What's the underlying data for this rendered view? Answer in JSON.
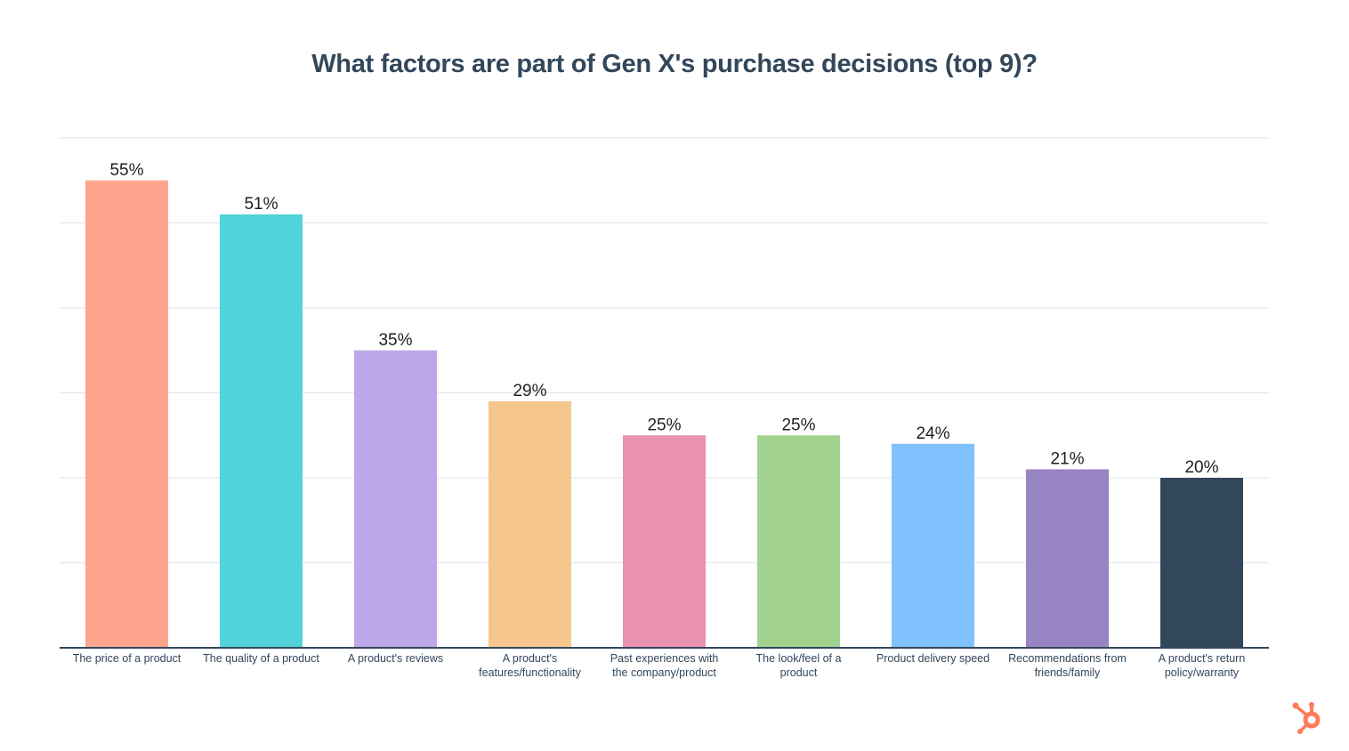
{
  "chart_data": {
    "type": "bar",
    "title": "What factors are part of Gen X's purchase decisions (top 9)?",
    "categories": [
      [
        "The price of a product"
      ],
      [
        "The quality of a product"
      ],
      [
        "A product's reviews"
      ],
      [
        "A product's",
        "features/functionality"
      ],
      [
        "Past experiences with",
        "the company/product"
      ],
      [
        "The look/feel of a",
        "product"
      ],
      [
        "Product delivery speed"
      ],
      [
        "Recommendations from",
        "friends/family"
      ],
      [
        "A product's return",
        "policy/warranty"
      ]
    ],
    "values": [
      55,
      51,
      35,
      29,
      25,
      25,
      24,
      21,
      20
    ],
    "value_labels": [
      "55%",
      "51%",
      "35%",
      "29%",
      "25%",
      "25%",
      "24%",
      "21%",
      "20%"
    ],
    "colors": [
      "#fea58e",
      "#51d3d9",
      "#bea7e8",
      "#f5c78e",
      "#ea90b1",
      "#a2d28f",
      "#81c1fd",
      "#9784c2",
      "#33475b"
    ],
    "ylim": [
      0,
      60
    ],
    "grid": true,
    "legend": "none",
    "xlabel": "",
    "ylabel": ""
  },
  "brand": {
    "logo_icon": "hubspot-sprocket-icon",
    "logo_color": "#ff7a59"
  }
}
